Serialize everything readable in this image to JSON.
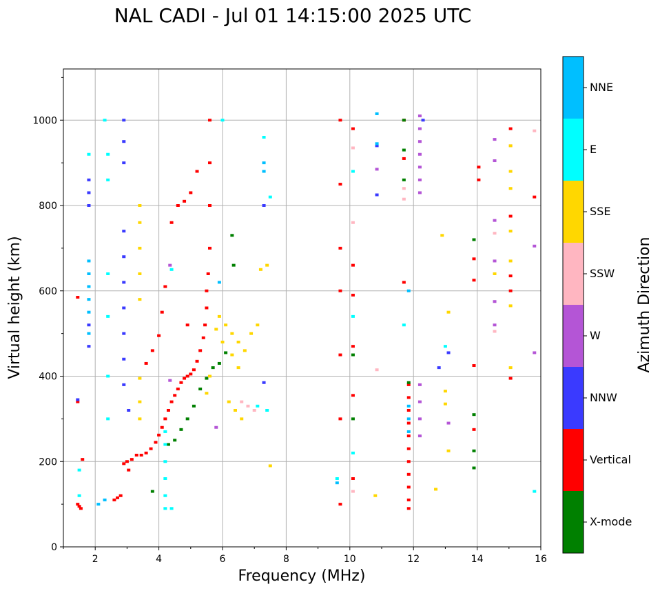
{
  "chart_data": {
    "type": "scatter",
    "title": "NAL CADI - Jul 01 14:15:00 2025 UTC",
    "xlabel": "Frequency (MHz)",
    "ylabel": "Virtual height (km)",
    "xlim": [
      1,
      16
    ],
    "ylim": [
      0,
      1120
    ],
    "xticks": [
      2,
      4,
      6,
      8,
      10,
      12,
      14,
      16
    ],
    "yticks": [
      0,
      200,
      400,
      600,
      800,
      1000
    ],
    "grid": true,
    "colorbar": {
      "label": "Azimuth Direction",
      "categories": [
        {
          "name": "X-mode",
          "color": "#008000"
        },
        {
          "name": "Vertical",
          "color": "#ff0000"
        },
        {
          "name": "NNW",
          "color": "#3a3aff"
        },
        {
          "name": "W",
          "color": "#b455d6"
        },
        {
          "name": "SSW",
          "color": "#ffb6c1"
        },
        {
          "name": "SSE",
          "color": "#ffd700"
        },
        {
          "name": "E",
          "color": "#00ffff"
        },
        {
          "name": "NNE",
          "color": "#00bfff"
        }
      ]
    },
    "series": [
      {
        "name": "Vertical",
        "color": "#ff0000",
        "points": [
          [
            1.45,
            100
          ],
          [
            1.5,
            95
          ],
          [
            1.55,
            90
          ],
          [
            1.6,
            205
          ],
          [
            1.45,
            585
          ],
          [
            1.45,
            340
          ],
          [
            2.6,
            110
          ],
          [
            2.7,
            115
          ],
          [
            2.8,
            120
          ],
          [
            2.9,
            195
          ],
          [
            3.0,
            200
          ],
          [
            3.05,
            180
          ],
          [
            3.15,
            205
          ],
          [
            3.3,
            215
          ],
          [
            3.45,
            215
          ],
          [
            3.6,
            220
          ],
          [
            3.75,
            230
          ],
          [
            3.9,
            245
          ],
          [
            4.0,
            262
          ],
          [
            4.1,
            280
          ],
          [
            4.2,
            300
          ],
          [
            4.3,
            320
          ],
          [
            4.4,
            340
          ],
          [
            4.5,
            355
          ],
          [
            4.6,
            370
          ],
          [
            4.7,
            385
          ],
          [
            4.8,
            395
          ],
          [
            4.9,
            400
          ],
          [
            5.0,
            405
          ],
          [
            5.1,
            415
          ],
          [
            5.2,
            435
          ],
          [
            5.3,
            460
          ],
          [
            5.4,
            490
          ],
          [
            5.45,
            520
          ],
          [
            5.5,
            560
          ],
          [
            5.5,
            600
          ],
          [
            5.55,
            640
          ],
          [
            5.6,
            700
          ],
          [
            5.6,
            800
          ],
          [
            5.6,
            900
          ],
          [
            5.6,
            1000
          ],
          [
            4.0,
            495
          ],
          [
            3.8,
            460
          ],
          [
            4.2,
            610
          ],
          [
            4.4,
            760
          ],
          [
            4.6,
            800
          ],
          [
            4.8,
            810
          ],
          [
            5.0,
            830
          ],
          [
            5.2,
            880
          ],
          [
            4.1,
            550
          ],
          [
            3.6,
            430
          ],
          [
            4.9,
            520
          ],
          [
            9.7,
            1000
          ],
          [
            9.7,
            850
          ],
          [
            9.7,
            700
          ],
          [
            9.7,
            600
          ],
          [
            9.7,
            450
          ],
          [
            9.7,
            300
          ],
          [
            9.7,
            100
          ],
          [
            10.1,
            980
          ],
          [
            10.1,
            660
          ],
          [
            10.1,
            590
          ],
          [
            10.1,
            470
          ],
          [
            10.1,
            355
          ],
          [
            10.1,
            160
          ],
          [
            11.85,
            380
          ],
          [
            11.85,
            350
          ],
          [
            11.85,
            320
          ],
          [
            11.85,
            290
          ],
          [
            11.85,
            260
          ],
          [
            11.85,
            230
          ],
          [
            11.85,
            200
          ],
          [
            11.85,
            170
          ],
          [
            11.85,
            140
          ],
          [
            11.85,
            110
          ],
          [
            11.85,
            90
          ],
          [
            11.7,
            1000
          ],
          [
            11.7,
            910
          ],
          [
            11.7,
            620
          ],
          [
            14.05,
            890
          ],
          [
            14.05,
            860
          ],
          [
            13.9,
            675
          ],
          [
            13.9,
            625
          ],
          [
            13.9,
            425
          ],
          [
            13.9,
            275
          ],
          [
            15.05,
            980
          ],
          [
            15.05,
            775
          ],
          [
            15.05,
            635
          ],
          [
            15.05,
            600
          ],
          [
            15.05,
            395
          ],
          [
            15.8,
            820
          ]
        ]
      },
      {
        "name": "X-mode",
        "color": "#008000",
        "points": [
          [
            4.3,
            240
          ],
          [
            4.5,
            250
          ],
          [
            4.7,
            275
          ],
          [
            4.9,
            300
          ],
          [
            5.1,
            330
          ],
          [
            5.3,
            370
          ],
          [
            5.5,
            395
          ],
          [
            5.7,
            420
          ],
          [
            5.9,
            430
          ],
          [
            6.1,
            455
          ],
          [
            6.35,
            660
          ],
          [
            6.3,
            730
          ],
          [
            3.8,
            130
          ],
          [
            10.1,
            450
          ],
          [
            10.1,
            300
          ],
          [
            11.7,
            1000
          ],
          [
            11.7,
            930
          ],
          [
            11.7,
            860
          ],
          [
            11.85,
            385
          ],
          [
            13.9,
            720
          ],
          [
            13.9,
            310
          ],
          [
            13.9,
            225
          ],
          [
            13.9,
            185
          ]
        ]
      },
      {
        "name": "NNW",
        "color": "#3a3aff",
        "points": [
          [
            1.8,
            860
          ],
          [
            1.8,
            830
          ],
          [
            1.8,
            800
          ],
          [
            1.8,
            470
          ],
          [
            1.8,
            520
          ],
          [
            2.9,
            1000
          ],
          [
            2.9,
            950
          ],
          [
            2.9,
            900
          ],
          [
            2.9,
            740
          ],
          [
            2.9,
            680
          ],
          [
            2.9,
            620
          ],
          [
            2.9,
            560
          ],
          [
            2.9,
            500
          ],
          [
            2.9,
            440
          ],
          [
            2.9,
            380
          ],
          [
            3.05,
            320
          ],
          [
            7.3,
            800
          ],
          [
            7.3,
            385
          ],
          [
            10.85,
            940
          ],
          [
            10.85,
            825
          ],
          [
            13.1,
            455
          ],
          [
            12.8,
            420
          ],
          [
            12.3,
            1000
          ],
          [
            1.45,
            345
          ]
        ]
      },
      {
        "name": "W",
        "color": "#b455d6",
        "points": [
          [
            4.35,
            390
          ],
          [
            4.35,
            660
          ],
          [
            5.8,
            280
          ],
          [
            12.2,
            1010
          ],
          [
            12.2,
            980
          ],
          [
            12.2,
            950
          ],
          [
            12.2,
            920
          ],
          [
            12.2,
            890
          ],
          [
            12.2,
            860
          ],
          [
            12.2,
            830
          ],
          [
            12.2,
            380
          ],
          [
            12.2,
            340
          ],
          [
            12.2,
            300
          ],
          [
            12.2,
            260
          ],
          [
            14.55,
            955
          ],
          [
            14.55,
            905
          ],
          [
            14.55,
            765
          ],
          [
            14.55,
            670
          ],
          [
            14.55,
            575
          ],
          [
            14.55,
            520
          ],
          [
            15.8,
            455
          ],
          [
            15.8,
            705
          ],
          [
            13.1,
            290
          ],
          [
            10.85,
            885
          ]
        ]
      },
      {
        "name": "SSW",
        "color": "#ffb6c1",
        "points": [
          [
            6.6,
            340
          ],
          [
            6.8,
            330
          ],
          [
            7.0,
            320
          ],
          [
            10.1,
            760
          ],
          [
            10.1,
            935
          ],
          [
            11.7,
            840
          ],
          [
            11.7,
            815
          ],
          [
            14.55,
            735
          ],
          [
            14.55,
            505
          ],
          [
            15.05,
            940
          ],
          [
            15.8,
            975
          ],
          [
            10.85,
            415
          ],
          [
            10.1,
            130
          ]
        ]
      },
      {
        "name": "SSE",
        "color": "#ffd700",
        "points": [
          [
            3.4,
            800
          ],
          [
            3.4,
            760
          ],
          [
            3.4,
            700
          ],
          [
            3.4,
            640
          ],
          [
            3.4,
            580
          ],
          [
            3.4,
            395
          ],
          [
            3.4,
            340
          ],
          [
            3.4,
            300
          ],
          [
            5.9,
            540
          ],
          [
            6.1,
            520
          ],
          [
            6.3,
            500
          ],
          [
            6.5,
            480
          ],
          [
            6.7,
            460
          ],
          [
            6.9,
            500
          ],
          [
            7.1,
            520
          ],
          [
            5.8,
            510
          ],
          [
            6.0,
            480
          ],
          [
            6.3,
            450
          ],
          [
            6.5,
            420
          ],
          [
            6.2,
            340
          ],
          [
            6.4,
            320
          ],
          [
            6.6,
            300
          ],
          [
            5.5,
            360
          ],
          [
            5.6,
            400
          ],
          [
            7.2,
            650
          ],
          [
            7.4,
            660
          ],
          [
            12.9,
            730
          ],
          [
            13.1,
            550
          ],
          [
            13.0,
            365
          ],
          [
            13.0,
            335
          ],
          [
            13.1,
            225
          ],
          [
            12.7,
            135
          ],
          [
            15.05,
            940
          ],
          [
            15.05,
            880
          ],
          [
            15.05,
            840
          ],
          [
            15.05,
            740
          ],
          [
            15.05,
            670
          ],
          [
            15.05,
            565
          ],
          [
            15.05,
            420
          ],
          [
            14.55,
            640
          ],
          [
            10.8,
            120
          ],
          [
            7.5,
            190
          ]
        ]
      },
      {
        "name": "E",
        "color": "#00ffff",
        "points": [
          [
            1.5,
            180
          ],
          [
            1.5,
            120
          ],
          [
            2.3,
            1000
          ],
          [
            2.4,
            920
          ],
          [
            2.4,
            860
          ],
          [
            2.4,
            640
          ],
          [
            2.4,
            540
          ],
          [
            2.4,
            400
          ],
          [
            2.4,
            300
          ],
          [
            4.2,
            270
          ],
          [
            4.2,
            240
          ],
          [
            4.2,
            200
          ],
          [
            4.2,
            160
          ],
          [
            4.2,
            120
          ],
          [
            4.2,
            90
          ],
          [
            4.4,
            90
          ],
          [
            4.4,
            650
          ],
          [
            7.1,
            330
          ],
          [
            7.4,
            320
          ],
          [
            6.0,
            1000
          ],
          [
            7.3,
            960
          ],
          [
            7.3,
            880
          ],
          [
            7.5,
            820
          ],
          [
            10.1,
            880
          ],
          [
            10.1,
            540
          ],
          [
            10.1,
            220
          ],
          [
            11.7,
            520
          ],
          [
            13.0,
            470
          ],
          [
            15.8,
            130
          ],
          [
            1.8,
            920
          ],
          [
            9.6,
            160
          ]
        ]
      },
      {
        "name": "NNE",
        "color": "#00bfff",
        "points": [
          [
            1.8,
            670
          ],
          [
            1.8,
            640
          ],
          [
            1.8,
            610
          ],
          [
            1.8,
            580
          ],
          [
            1.8,
            550
          ],
          [
            1.8,
            500
          ],
          [
            7.3,
            900
          ],
          [
            7.3,
            880
          ],
          [
            5.9,
            620
          ],
          [
            10.85,
            1015
          ],
          [
            10.85,
            945
          ],
          [
            11.85,
            600
          ],
          [
            11.85,
            330
          ],
          [
            11.85,
            300
          ],
          [
            11.85,
            270
          ],
          [
            9.6,
            150
          ],
          [
            2.1,
            100
          ],
          [
            2.3,
            110
          ]
        ]
      }
    ]
  }
}
